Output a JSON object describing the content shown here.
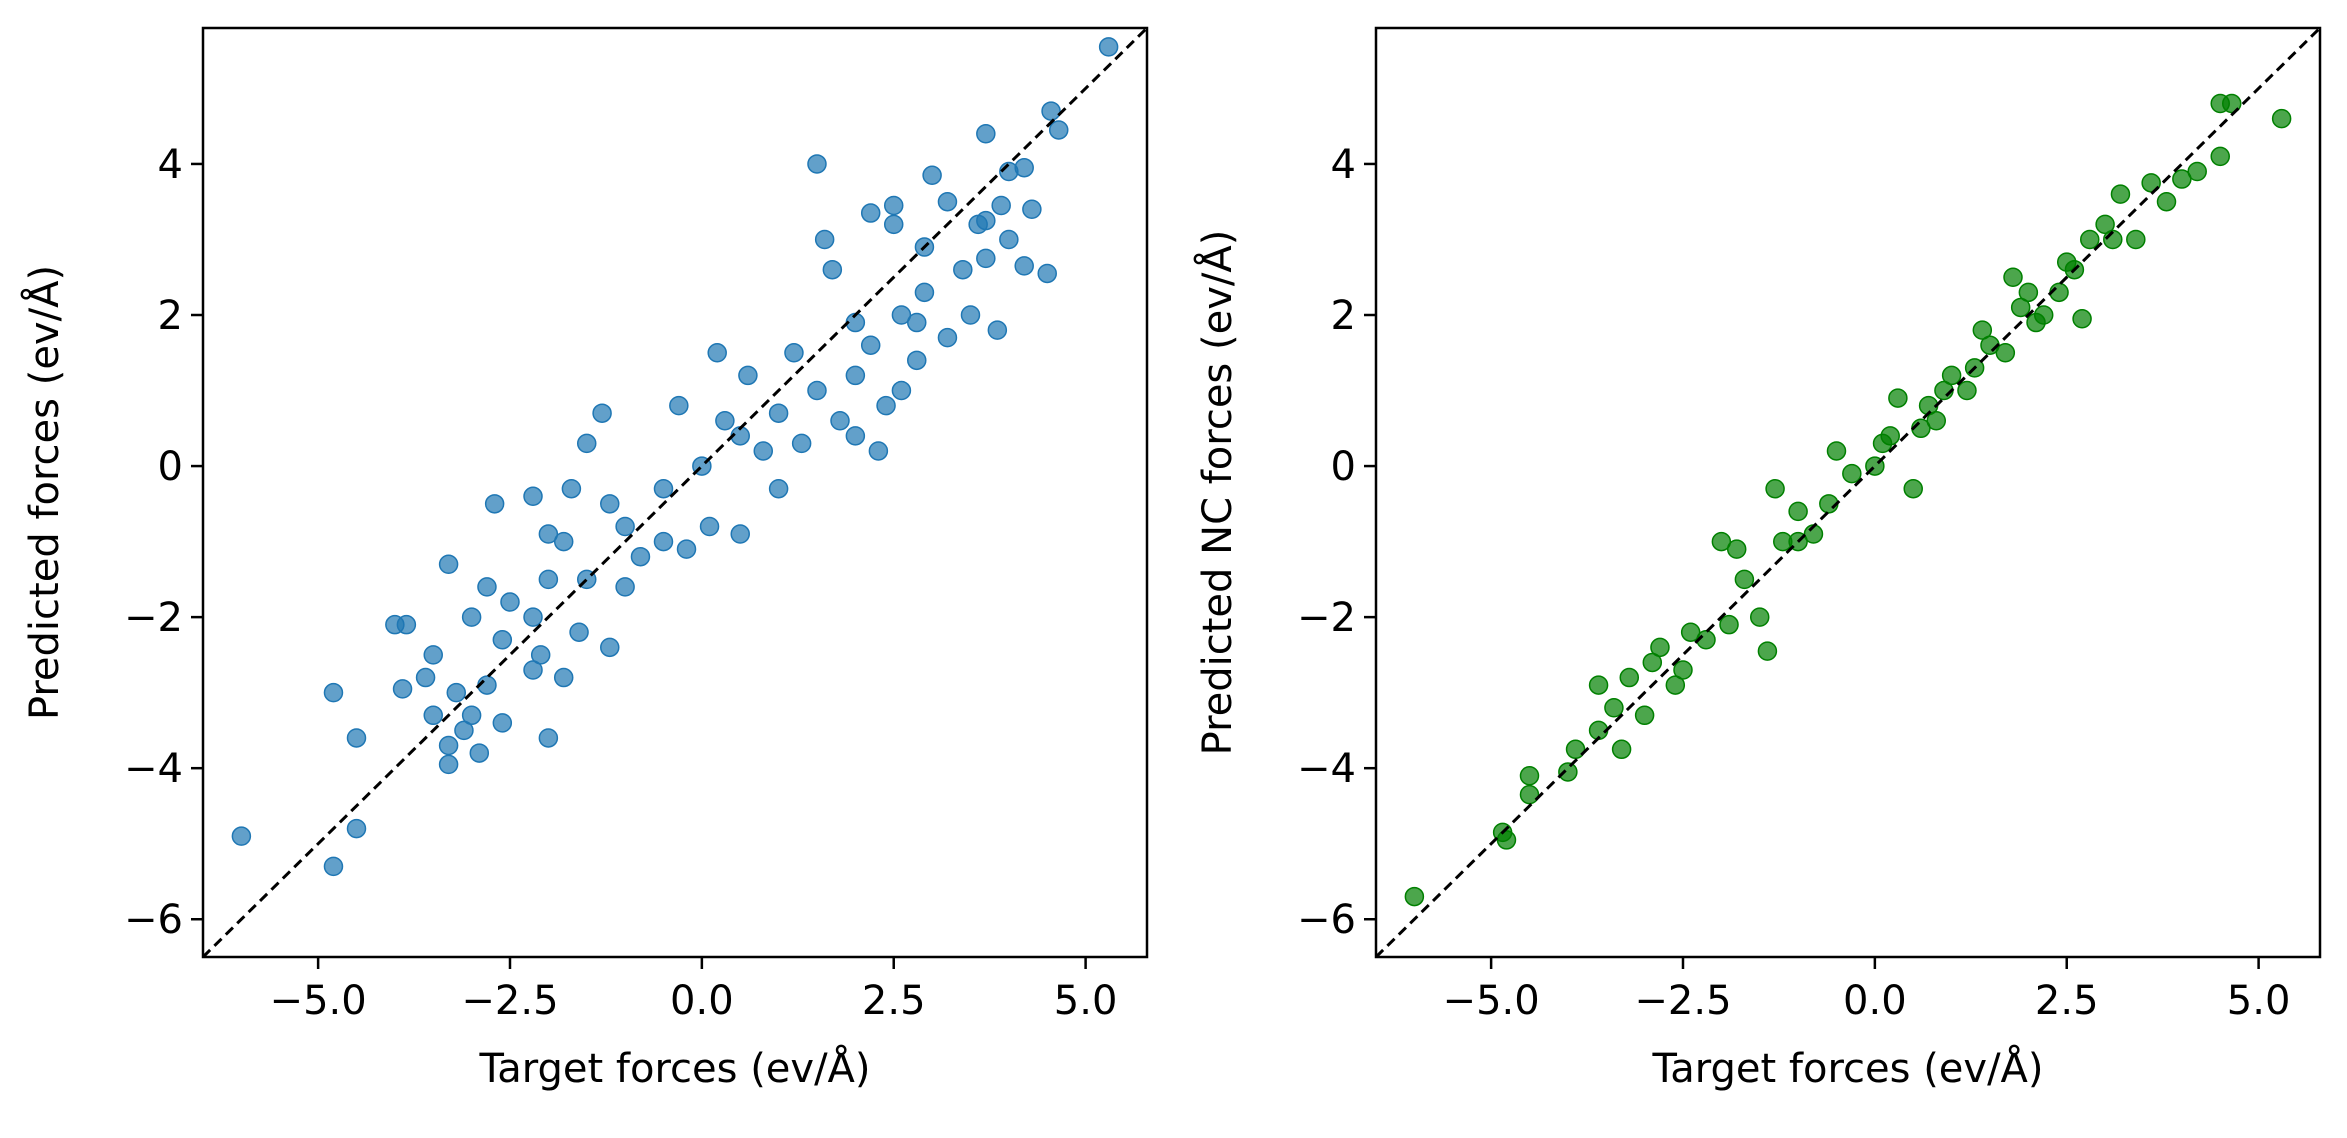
{
  "chart_data": [
    {
      "type": "scatter",
      "xlabel": "Target forces (ev/Å)",
      "ylabel": "Predicted forces (ev/Å)",
      "xlim": [
        -6.5,
        5.8
      ],
      "ylim": [
        -6.5,
        5.8
      ],
      "xticks": [
        -5.0,
        -2.5,
        0.0,
        2.5,
        5.0
      ],
      "xtick_labels": [
        "−5.0",
        "−2.5",
        "0.0",
        "2.5",
        "5.0"
      ],
      "yticks": [
        -6,
        -4,
        -2,
        0,
        2,
        4
      ],
      "ytick_labels": [
        "−6",
        "−4",
        "−2",
        "0",
        "2",
        "4"
      ],
      "reference_line": "y = x (black dashed)",
      "grid": false,
      "color": "#1f77b4",
      "series": [
        {
          "points": [
            [
              -6.0,
              -4.9
            ],
            [
              -4.8,
              -5.3
            ],
            [
              -4.8,
              -3.0
            ],
            [
              -4.5,
              -3.6
            ],
            [
              -4.5,
              -4.8
            ],
            [
              -4.0,
              -2.1
            ],
            [
              -3.9,
              -2.95
            ],
            [
              -3.85,
              -2.1
            ],
            [
              -3.6,
              -2.8
            ],
            [
              -3.5,
              -2.5
            ],
            [
              -3.5,
              -3.3
            ],
            [
              -3.3,
              -1.3
            ],
            [
              -3.3,
              -3.95
            ],
            [
              -3.3,
              -3.7
            ],
            [
              -3.2,
              -3.0
            ],
            [
              -3.1,
              -3.5
            ],
            [
              -3.0,
              -3.3
            ],
            [
              -2.9,
              -3.8
            ],
            [
              -2.8,
              -2.9
            ],
            [
              -2.6,
              -2.3
            ],
            [
              -2.6,
              -3.4
            ],
            [
              -2.2,
              -2.7
            ],
            [
              -2.0,
              -3.6
            ],
            [
              -2.1,
              -2.5
            ],
            [
              -2.2,
              -2.0
            ],
            [
              -1.8,
              -2.8
            ],
            [
              -1.6,
              -2.2
            ],
            [
              -1.2,
              -2.4
            ],
            [
              -1.3,
              0.7
            ],
            [
              -1.0,
              -1.6
            ],
            [
              -0.5,
              -1.0
            ],
            [
              -0.2,
              -1.1
            ],
            [
              0.1,
              -0.8
            ],
            [
              0.2,
              1.5
            ],
            [
              0.5,
              -0.9
            ],
            [
              1.0,
              -0.3
            ],
            [
              1.3,
              0.3
            ],
            [
              1.5,
              4.0
            ],
            [
              1.6,
              3.0
            ],
            [
              1.7,
              2.6
            ],
            [
              2.0,
              1.9
            ],
            [
              2.2,
              3.35
            ],
            [
              2.5,
              3.45
            ],
            [
              2.5,
              3.2
            ],
            [
              2.6,
              2.0
            ],
            [
              2.8,
              1.9
            ],
            [
              2.9,
              2.9
            ],
            [
              2.9,
              2.3
            ],
            [
              3.0,
              3.85
            ],
            [
              3.2,
              3.5
            ],
            [
              3.4,
              2.6
            ],
            [
              3.6,
              3.2
            ],
            [
              3.7,
              4.4
            ],
            [
              3.7,
              3.25
            ],
            [
              3.7,
              2.75
            ],
            [
              3.85,
              1.8
            ],
            [
              3.9,
              3.45
            ],
            [
              4.0,
              3.9
            ],
            [
              4.2,
              3.95
            ],
            [
              4.2,
              2.65
            ],
            [
              4.3,
              3.4
            ],
            [
              4.5,
              2.55
            ],
            [
              4.55,
              4.7
            ],
            [
              4.65,
              4.45
            ],
            [
              5.3,
              5.55
            ],
            [
              4.0,
              3.0
            ],
            [
              3.5,
              2.0
            ],
            [
              3.2,
              1.7
            ],
            [
              2.8,
              1.4
            ],
            [
              2.4,
              0.8
            ],
            [
              2.0,
              0.4
            ],
            [
              -2.2,
              -0.4
            ],
            [
              -2.7,
              -0.5
            ],
            [
              -1.5,
              0.3
            ],
            [
              -2.0,
              -1.5
            ],
            [
              -1.0,
              -0.8
            ],
            [
              -0.5,
              -0.3
            ],
            [
              0.0,
              0.0
            ],
            [
              0.5,
              0.4
            ],
            [
              1.0,
              0.7
            ],
            [
              1.5,
              1.0
            ],
            [
              2.0,
              1.2
            ],
            [
              -2.5,
              -1.8
            ],
            [
              -2.8,
              -1.6
            ],
            [
              -3.0,
              -2.0
            ],
            [
              -1.8,
              -1.0
            ],
            [
              -1.2,
              -0.5
            ],
            [
              0.3,
              0.6
            ],
            [
              0.8,
              0.2
            ],
            [
              1.2,
              1.5
            ],
            [
              1.8,
              0.6
            ],
            [
              2.2,
              1.6
            ],
            [
              -0.8,
              -1.2
            ],
            [
              -1.5,
              -1.5
            ],
            [
              -2.0,
              -0.9
            ],
            [
              2.6,
              1.0
            ],
            [
              2.3,
              0.2
            ],
            [
              -0.3,
              0.8
            ],
            [
              0.6,
              1.2
            ],
            [
              -1.7,
              -0.3
            ]
          ]
        }
      ]
    },
    {
      "type": "scatter",
      "xlabel": "Target forces (ev/Å)",
      "ylabel": "Predicted NC forces (ev/Å)",
      "xlim": [
        -6.5,
        5.8
      ],
      "ylim": [
        -6.5,
        5.8
      ],
      "xticks": [
        -5.0,
        -2.5,
        0.0,
        2.5,
        5.0
      ],
      "xtick_labels": [
        "−5.0",
        "−2.5",
        "0.0",
        "2.5",
        "5.0"
      ],
      "yticks": [
        -6,
        -4,
        -2,
        0,
        2,
        4
      ],
      "ytick_labels": [
        "−6",
        "−4",
        "−2",
        "0",
        "2",
        "4"
      ],
      "reference_line": "y = x (black dashed)",
      "grid": false,
      "color": "#008000",
      "series": [
        {
          "points": [
            [
              -6.0,
              -5.7
            ],
            [
              -4.85,
              -4.85
            ],
            [
              -4.8,
              -4.95
            ],
            [
              -4.5,
              -4.1
            ],
            [
              -4.5,
              -4.35
            ],
            [
              -4.0,
              -4.05
            ],
            [
              -3.9,
              -3.75
            ],
            [
              -3.6,
              -2.9
            ],
            [
              -3.6,
              -3.5
            ],
            [
              -3.4,
              -3.2
            ],
            [
              -3.3,
              -3.75
            ],
            [
              -3.0,
              -3.3
            ],
            [
              -2.8,
              -2.4
            ],
            [
              -2.5,
              -2.7
            ],
            [
              -2.0,
              -1.0
            ],
            [
              -1.8,
              -1.1
            ],
            [
              -1.5,
              -2.0
            ],
            [
              -1.3,
              -0.3
            ],
            [
              -1.0,
              -1.0
            ],
            [
              -0.5,
              0.2
            ],
            [
              0.0,
              0.0
            ],
            [
              0.3,
              0.9
            ],
            [
              0.5,
              -0.3
            ],
            [
              0.8,
              0.6
            ],
            [
              1.0,
              1.2
            ],
            [
              1.5,
              1.6
            ],
            [
              1.8,
              2.5
            ],
            [
              2.0,
              2.3
            ],
            [
              2.2,
              2.0
            ],
            [
              2.5,
              2.7
            ],
            [
              2.7,
              1.95
            ],
            [
              2.8,
              3.0
            ],
            [
              3.0,
              3.2
            ],
            [
              3.2,
              3.6
            ],
            [
              3.4,
              3.0
            ],
            [
              3.6,
              3.75
            ],
            [
              3.8,
              3.5
            ],
            [
              4.0,
              3.8
            ],
            [
              4.2,
              3.9
            ],
            [
              4.5,
              4.1
            ],
            [
              4.5,
              4.8
            ],
            [
              4.65,
              4.8
            ],
            [
              5.3,
              4.6
            ],
            [
              -1.4,
              -2.45
            ],
            [
              -2.2,
              -2.3
            ],
            [
              -2.9,
              -2.6
            ],
            [
              -1.0,
              -0.6
            ],
            [
              -0.3,
              -0.1
            ],
            [
              0.6,
              0.5
            ],
            [
              1.2,
              1.0
            ],
            [
              1.4,
              1.8
            ],
            [
              2.1,
              1.9
            ],
            [
              2.4,
              2.3
            ],
            [
              -2.4,
              -2.2
            ],
            [
              -1.7,
              -1.5
            ],
            [
              -0.8,
              -0.9
            ],
            [
              0.1,
              0.3
            ],
            [
              0.9,
              1.0
            ],
            [
              1.7,
              1.5
            ],
            [
              2.6,
              2.6
            ],
            [
              -3.2,
              -2.8
            ],
            [
              -2.6,
              -2.9
            ],
            [
              -1.9,
              -2.1
            ],
            [
              -1.2,
              -1.0
            ],
            [
              -0.6,
              -0.5
            ],
            [
              0.2,
              0.4
            ],
            [
              0.7,
              0.8
            ],
            [
              1.3,
              1.3
            ],
            [
              1.9,
              2.1
            ],
            [
              3.1,
              3.0
            ]
          ]
        }
      ]
    }
  ]
}
